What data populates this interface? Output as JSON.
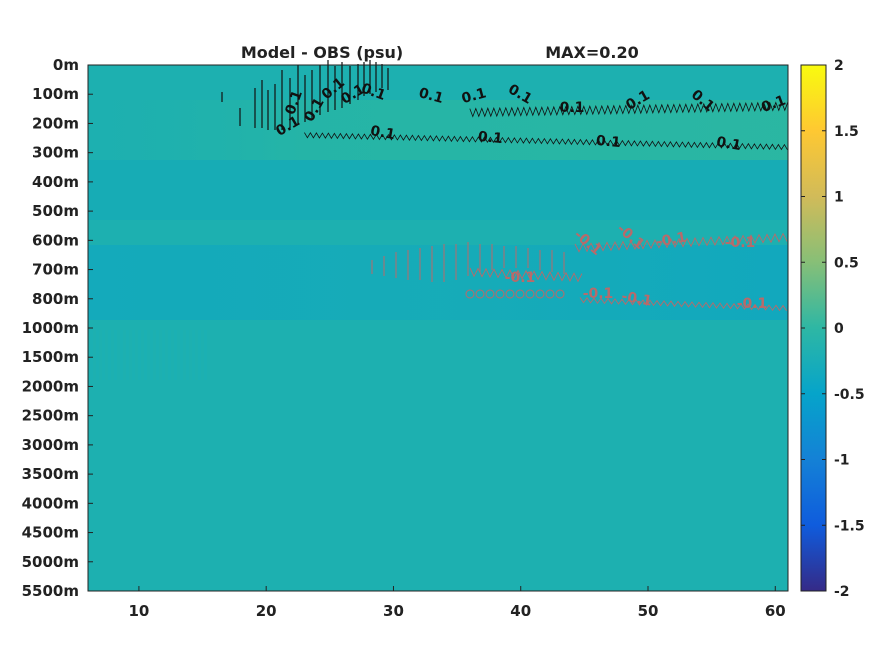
{
  "chart_data": {
    "type": "heatmap",
    "title": "Model - OBS (psu)",
    "annotation": "MAX=0.20",
    "x_ticks": [
      10,
      20,
      30,
      40,
      50,
      60
    ],
    "xlim": [
      6,
      61
    ],
    "y_ticks": [
      "0m",
      "100m",
      "200m",
      "300m",
      "400m",
      "500m",
      "600m",
      "700m",
      "800m",
      "1000m",
      "1500m",
      "2000m",
      "2500m",
      "3000m",
      "3500m",
      "4000m",
      "4500m",
      "5000m",
      "5500m"
    ],
    "colorbar": {
      "ticks": [
        "2",
        "1.5",
        "1",
        "0.5",
        "0",
        "-0.5",
        "-1",
        "-1.5",
        "-2"
      ],
      "range": [
        -2,
        2
      ],
      "colormap": "parula"
    },
    "contours": [
      {
        "level": "0.1",
        "color": "#111111",
        "depth_top": "100m",
        "depth_bottom": "250m",
        "x_start": 17,
        "x_end": 61
      },
      {
        "level": "-0.1",
        "color": "#b86a6a",
        "depth_top": "600m",
        "depth_bottom": "850m",
        "x_start": 28,
        "x_end": 61
      }
    ],
    "contour_labels_positive": [
      "0.1",
      "0.1",
      "0.1",
      "0.1",
      "0.1",
      "0.1",
      "0.1",
      "0.1",
      "0.1",
      "0.1",
      "0.1",
      "0.1",
      "0.1",
      "0.1",
      "0.1",
      "0.1",
      "0.1"
    ],
    "contour_labels_negative": [
      "-0.1",
      "-0.1",
      "-0.1",
      "-0.1",
      "-0.1",
      "-0.1",
      "-0.1",
      "-0.1"
    ],
    "background_value": 0,
    "grid": false
  }
}
